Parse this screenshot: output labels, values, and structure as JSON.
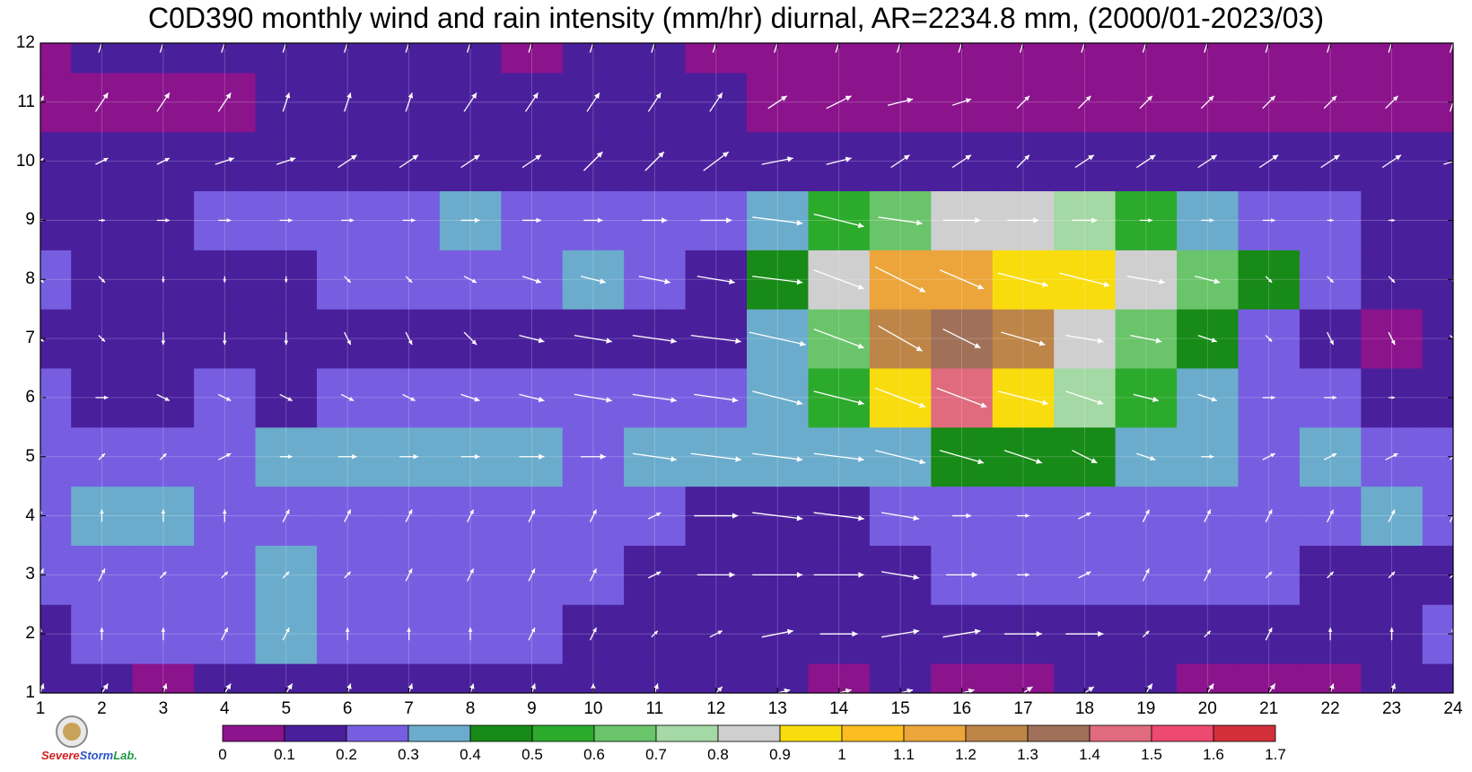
{
  "title": "C0D390 monthly wind and rain intensity (mm/hr) diurnal, AR=2234.8 mm, (2000/01-2023/03)",
  "logo": {
    "text_part1": "Severe",
    "text_part2": "Storm",
    "text_part3": "Lab."
  },
  "chart_data": {
    "type": "heatmap",
    "title": "C0D390 monthly wind and rain intensity (mm/hr) diurnal, AR=2234.8 mm, (2000/01-2023/03)",
    "xlabel": "",
    "ylabel": "",
    "x_ticks": [
      1,
      2,
      3,
      4,
      5,
      6,
      7,
      8,
      9,
      10,
      11,
      12,
      13,
      14,
      15,
      16,
      17,
      18,
      19,
      20,
      21,
      22,
      23,
      24
    ],
    "y_ticks": [
      1,
      2,
      3,
      4,
      5,
      6,
      7,
      8,
      9,
      10,
      11,
      12
    ],
    "xlim": [
      1,
      24
    ],
    "ylim": [
      1,
      12
    ],
    "grid": true,
    "colorbar": {
      "position": "bottom",
      "levels": [
        0,
        0.1,
        0.2,
        0.3,
        0.4,
        0.5,
        0.6,
        0.7,
        0.8,
        0.9,
        1,
        1.1,
        1.2,
        1.3,
        1.4,
        1.5,
        1.6,
        1.7
      ],
      "labels": [
        "0",
        "0.1",
        "0.2",
        "0.3",
        "0.4",
        "0.5",
        "0.6",
        "0.7",
        "0.8",
        "0.9",
        "1",
        "1.1",
        "1.2",
        "1.3",
        "1.4",
        "1.5",
        "1.6",
        "1.7"
      ],
      "colors": [
        "#8b138c",
        "#4a1f9c",
        "#775ee1",
        "#6baccc",
        "#178a17",
        "#2caa2c",
        "#6ac46a",
        "#a4d8a4",
        "#cfcfcf",
        "#f8dc0e",
        "#fbbd21",
        "#eca53b",
        "#bd8547",
        "#a07058",
        "#e06a7e",
        "#ee4971",
        "#d22f3b"
      ]
    },
    "rain_values": {
      "x": [
        1,
        2,
        3,
        4,
        5,
        6,
        7,
        8,
        9,
        10,
        11,
        12,
        13,
        14,
        15,
        16,
        17,
        18,
        19,
        20,
        21,
        22,
        23,
        24
      ],
      "y": [
        1,
        2,
        3,
        4,
        5,
        6,
        7,
        8,
        9,
        10,
        11,
        12
      ],
      "z": [
        [
          0.18,
          0.15,
          0.08,
          0.13,
          0.13,
          0.13,
          0.14,
          0.13,
          0.14,
          0.16,
          0.14,
          0.12,
          0.11,
          0.09,
          0.11,
          0.06,
          0.06,
          0.11,
          0.1,
          0.09,
          0.06,
          0.05,
          0.11,
          0.13
        ],
        [
          0.19,
          0.2,
          0.24,
          0.29,
          0.3,
          0.29,
          0.24,
          0.22,
          0.22,
          0.19,
          0.17,
          0.15,
          0.14,
          0.17,
          0.15,
          0.16,
          0.14,
          0.13,
          0.16,
          0.18,
          0.18,
          0.17,
          0.19,
          0.21
        ],
        [
          0.23,
          0.26,
          0.28,
          0.28,
          0.31,
          0.27,
          0.25,
          0.24,
          0.24,
          0.23,
          0.17,
          0.15,
          0.14,
          0.14,
          0.17,
          0.22,
          0.21,
          0.24,
          0.23,
          0.22,
          0.21,
          0.18,
          0.16,
          0.18
        ],
        [
          0.27,
          0.32,
          0.31,
          0.28,
          0.28,
          0.26,
          0.28,
          0.27,
          0.26,
          0.26,
          0.24,
          0.19,
          0.18,
          0.19,
          0.2,
          0.24,
          0.27,
          0.27,
          0.25,
          0.26,
          0.26,
          0.28,
          0.3,
          0.24
        ],
        [
          0.25,
          0.26,
          0.25,
          0.29,
          0.31,
          0.31,
          0.31,
          0.31,
          0.3,
          0.29,
          0.3,
          0.3,
          0.31,
          0.32,
          0.35,
          0.42,
          0.45,
          0.44,
          0.34,
          0.31,
          0.28,
          0.3,
          0.25,
          0.21
        ],
        [
          0.2,
          0.19,
          0.18,
          0.2,
          0.19,
          0.22,
          0.25,
          0.24,
          0.24,
          0.29,
          0.29,
          0.29,
          0.38,
          0.52,
          0.95,
          1.45,
          0.95,
          0.72,
          0.52,
          0.33,
          0.26,
          0.24,
          0.19,
          0.18
        ],
        [
          0.15,
          0.14,
          0.13,
          0.14,
          0.14,
          0.14,
          0.16,
          0.14,
          0.16,
          0.17,
          0.16,
          0.17,
          0.34,
          0.65,
          1.25,
          1.35,
          1.2,
          0.88,
          0.62,
          0.43,
          0.26,
          0.14,
          0.08,
          0.13
        ],
        [
          0.22,
          0.19,
          0.17,
          0.17,
          0.17,
          0.22,
          0.23,
          0.27,
          0.24,
          0.31,
          0.22,
          0.18,
          0.4,
          0.88,
          1.15,
          1.1,
          0.98,
          0.95,
          0.85,
          0.65,
          0.45,
          0.28,
          0.18,
          0.18
        ],
        [
          0.18,
          0.14,
          0.18,
          0.2,
          0.22,
          0.23,
          0.24,
          0.32,
          0.27,
          0.24,
          0.22,
          0.24,
          0.34,
          0.55,
          0.66,
          0.8,
          0.81,
          0.72,
          0.52,
          0.3,
          0.26,
          0.26,
          0.18,
          0.16
        ],
        [
          0.13,
          0.14,
          0.14,
          0.14,
          0.14,
          0.14,
          0.16,
          0.14,
          0.16,
          0.17,
          0.16,
          0.16,
          0.14,
          0.16,
          0.16,
          0.16,
          0.17,
          0.18,
          0.18,
          0.16,
          0.15,
          0.14,
          0.12,
          0.1
        ],
        [
          0.05,
          0.06,
          0.06,
          0.07,
          0.12,
          0.14,
          0.14,
          0.14,
          0.14,
          0.13,
          0.12,
          0.11,
          0.07,
          0.06,
          0.07,
          0.06,
          0.07,
          0.07,
          0.07,
          0.07,
          0.07,
          0.08,
          0.08,
          0.07
        ],
        [
          0.05,
          0.1,
          0.12,
          0.12,
          0.12,
          0.12,
          0.12,
          0.11,
          0.09,
          0.11,
          0.11,
          0.06,
          0.07,
          0.06,
          0.06,
          0.06,
          0.06,
          0.06,
          0.06,
          0.06,
          0.05,
          0.06,
          0.06,
          0.06
        ]
      ]
    },
    "wind": {
      "description_free": true,
      "u": [
        [
          0.1,
          0.2,
          0.1,
          0.2,
          0.2,
          0.1,
          0.1,
          0.1,
          0.1,
          0.0,
          0.1,
          0.2,
          0.4,
          0.4,
          0.4,
          0.4,
          0.3,
          0.3,
          0.2,
          0.2,
          0.2,
          0.1,
          0.1,
          0.1
        ],
        [
          0.0,
          0.0,
          0.0,
          0.1,
          0.1,
          0.0,
          0.0,
          0.0,
          0.1,
          0.1,
          0.1,
          0.2,
          0.5,
          0.6,
          0.6,
          0.6,
          0.6,
          0.6,
          0.1,
          0.1,
          0.1,
          0.0,
          0.0,
          0.0
        ],
        [
          0.1,
          0.1,
          0.1,
          0.1,
          0.1,
          0.1,
          0.1,
          0.1,
          0.1,
          0.1,
          0.2,
          0.6,
          0.8,
          0.8,
          0.6,
          0.5,
          0.2,
          0.2,
          0.1,
          0.1,
          0.1,
          0.1,
          0.1,
          0.1
        ],
        [
          0.0,
          0.0,
          0.0,
          0.0,
          0.1,
          0.1,
          0.1,
          0.1,
          0.1,
          0.1,
          0.2,
          0.7,
          0.8,
          0.8,
          0.6,
          0.3,
          0.2,
          0.2,
          0.1,
          0.1,
          0.1,
          0.1,
          0.1,
          0.1
        ],
        [
          0.0,
          0.1,
          0.1,
          0.2,
          0.2,
          0.3,
          0.3,
          0.3,
          0.4,
          0.4,
          0.7,
          0.8,
          0.8,
          0.8,
          0.8,
          0.7,
          0.6,
          0.4,
          0.3,
          0.2,
          0.2,
          0.2,
          0.2,
          0.1
        ],
        [
          0.1,
          0.2,
          0.2,
          0.2,
          0.2,
          0.2,
          0.2,
          0.3,
          0.4,
          0.6,
          0.7,
          0.7,
          0.8,
          0.8,
          0.8,
          0.8,
          0.8,
          0.6,
          0.4,
          0.3,
          0.2,
          0.2,
          0.1,
          0.0
        ],
        [
          0.1,
          0.1,
          0.0,
          0.0,
          0.0,
          0.1,
          0.1,
          0.2,
          0.4,
          0.6,
          0.7,
          0.8,
          0.9,
          0.8,
          0.7,
          0.6,
          0.7,
          0.6,
          0.5,
          0.3,
          0.1,
          0.1,
          0.1,
          0.1
        ],
        [
          0.1,
          0.1,
          0.0,
          0.0,
          0.0,
          0.1,
          0.1,
          0.2,
          0.3,
          0.4,
          0.5,
          0.6,
          0.8,
          0.8,
          0.8,
          0.7,
          0.8,
          0.8,
          0.6,
          0.4,
          0.1,
          0.1,
          0.1,
          0.0
        ],
        [
          0.1,
          0.1,
          0.2,
          0.2,
          0.2,
          0.2,
          0.2,
          0.3,
          0.3,
          0.3,
          0.4,
          0.5,
          0.8,
          0.8,
          0.7,
          0.6,
          0.5,
          0.4,
          0.2,
          0.2,
          0.2,
          0.1,
          0.1,
          0.0
        ],
        [
          0.1,
          0.2,
          0.2,
          0.3,
          0.3,
          0.3,
          0.3,
          0.3,
          0.3,
          0.3,
          0.3,
          0.4,
          0.5,
          0.4,
          0.3,
          0.3,
          0.2,
          0.3,
          0.3,
          0.3,
          0.3,
          0.3,
          0.3,
          0.3
        ],
        [
          0.1,
          0.2,
          0.2,
          0.2,
          0.1,
          0.1,
          0.1,
          0.2,
          0.2,
          0.2,
          0.2,
          0.2,
          0.3,
          0.4,
          0.4,
          0.3,
          0.2,
          0.2,
          0.2,
          0.2,
          0.2,
          0.2,
          0.2,
          0.1
        ],
        [
          0.1,
          0.1,
          0.1,
          0.1,
          0.1,
          0.1,
          0.1,
          0.1,
          0.1,
          0.1,
          0.1,
          0.1,
          0.1,
          0.1,
          0.1,
          0.1,
          0.1,
          0.1,
          0.1,
          0.1,
          0.1,
          0.1,
          0.1,
          0.1
        ]
      ],
      "v": [
        [
          0.3,
          0.3,
          0.3,
          0.3,
          0.3,
          0.3,
          0.3,
          0.3,
          0.3,
          0.3,
          0.3,
          0.2,
          0.1,
          0.1,
          0.1,
          0.1,
          0.2,
          0.2,
          0.3,
          0.3,
          0.3,
          0.3,
          0.3,
          0.3
        ],
        [
          0.2,
          0.2,
          0.2,
          0.2,
          0.2,
          0.2,
          0.2,
          0.2,
          0.2,
          0.2,
          0.1,
          0.1,
          0.1,
          0.0,
          0.1,
          0.1,
          0.0,
          0.0,
          0.1,
          0.1,
          0.2,
          0.2,
          0.2,
          0.2
        ],
        [
          0.2,
          0.2,
          0.1,
          0.1,
          0.1,
          0.1,
          0.2,
          0.2,
          0.2,
          0.2,
          0.1,
          0.0,
          0.0,
          0.0,
          -0.1,
          0.0,
          0.0,
          0.1,
          0.2,
          0.2,
          0.1,
          0.1,
          0.1,
          0.1
        ],
        [
          0.2,
          0.2,
          0.2,
          0.2,
          0.2,
          0.2,
          0.2,
          0.2,
          0.2,
          0.2,
          0.1,
          0.0,
          -0.1,
          -0.1,
          -0.1,
          0.0,
          0.0,
          0.1,
          0.2,
          0.2,
          0.2,
          0.2,
          0.2,
          0.2
        ],
        [
          0.1,
          0.1,
          0.1,
          0.1,
          0.0,
          0.0,
          0.0,
          0.0,
          0.0,
          0.0,
          -0.1,
          -0.1,
          -0.1,
          -0.1,
          -0.2,
          -0.2,
          -0.2,
          -0.2,
          -0.1,
          0.0,
          0.1,
          0.1,
          0.1,
          0.1
        ],
        [
          0.0,
          0.0,
          -0.1,
          -0.1,
          -0.1,
          -0.1,
          -0.1,
          -0.1,
          -0.1,
          -0.1,
          -0.1,
          -0.1,
          -0.2,
          -0.2,
          -0.3,
          -0.3,
          -0.2,
          -0.2,
          -0.1,
          -0.1,
          0.0,
          0.0,
          0.0,
          0.0
        ],
        [
          -0.1,
          -0.1,
          -0.2,
          -0.2,
          -0.2,
          -0.2,
          -0.2,
          -0.2,
          -0.1,
          -0.1,
          -0.1,
          -0.1,
          -0.2,
          -0.3,
          -0.4,
          -0.3,
          -0.2,
          -0.1,
          -0.1,
          -0.1,
          -0.1,
          -0.2,
          -0.2,
          -0.1
        ],
        [
          -0.1,
          -0.1,
          -0.1,
          -0.1,
          -0.1,
          -0.1,
          -0.1,
          -0.1,
          -0.1,
          -0.1,
          -0.1,
          -0.1,
          -0.1,
          -0.3,
          -0.4,
          -0.3,
          -0.2,
          -0.2,
          -0.1,
          -0.1,
          -0.1,
          -0.1,
          -0.1,
          -0.1
        ],
        [
          0.0,
          0.0,
          0.0,
          0.0,
          0.0,
          0.0,
          0.0,
          0.0,
          0.0,
          0.0,
          0.0,
          0.0,
          -0.1,
          -0.2,
          -0.1,
          0.0,
          0.0,
          0.0,
          0.0,
          0.0,
          0.0,
          0.0,
          0.0,
          0.0
        ],
        [
          0.1,
          0.1,
          0.1,
          0.1,
          0.1,
          0.2,
          0.2,
          0.2,
          0.2,
          0.3,
          0.3,
          0.3,
          0.1,
          0.1,
          0.2,
          0.2,
          0.2,
          0.2,
          0.2,
          0.2,
          0.2,
          0.2,
          0.2,
          0.1
        ],
        [
          0.2,
          0.3,
          0.3,
          0.3,
          0.3,
          0.3,
          0.3,
          0.3,
          0.3,
          0.3,
          0.3,
          0.3,
          0.2,
          0.2,
          0.1,
          0.1,
          0.2,
          0.2,
          0.2,
          0.2,
          0.2,
          0.2,
          0.2,
          0.3
        ],
        [
          0.3,
          0.3,
          0.3,
          0.3,
          0.3,
          0.3,
          0.3,
          0.3,
          0.3,
          0.3,
          0.3,
          0.3,
          0.3,
          0.3,
          0.3,
          0.3,
          0.3,
          0.3,
          0.3,
          0.3,
          0.3,
          0.3,
          0.3,
          0.3
        ]
      ]
    }
  }
}
